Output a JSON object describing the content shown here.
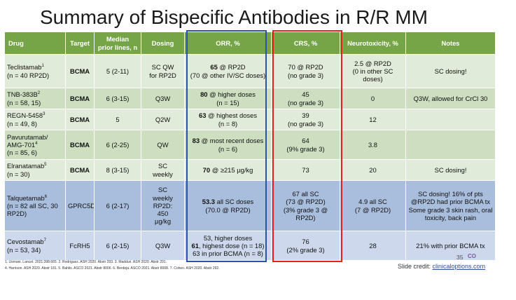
{
  "title": "Summary of Bispecific Antibodies in R/R MM",
  "columns": {
    "drug": "Drug",
    "target": "Target",
    "median_line1": "Median",
    "median_line2": "prior lines, n",
    "dosing": "Dosing",
    "orr": "ORR, %",
    "crs": "CRS, %",
    "neuro": "Neurotoxicity, %",
    "notes": "Notes"
  },
  "rows": [
    {
      "drug_name": "Teclistamab",
      "drug_sup": "1",
      "drug_n": "(n = 40 RP2D)",
      "target": "BCMA",
      "median": "5 (2-11)",
      "dosing_1": "SC QW",
      "dosing_2": "for RP2D",
      "orr_bold": "65",
      "orr_rest": " @ RP2D",
      "orr_2": "(70 @ other IV/SC doses)",
      "crs_1": "70 @ RP2D",
      "crs_2": "(no grade 3)",
      "neuro_1": "2.5 @ RP2D",
      "neuro_2": "(0 in other SC",
      "neuro_3": "doses)",
      "notes": "SC dosing!"
    },
    {
      "drug_name": "TNB-383B",
      "drug_sup": "2",
      "drug_n": "(n = 58, 15)",
      "target": "BCMA",
      "median": "6 (3-15)",
      "dosing": "Q3W",
      "orr_bold": "80",
      "orr_rest": " @ higher doses",
      "orr_2": "(n = 15)",
      "crs_1": "45",
      "crs_2": "(no grade 3)",
      "neuro": "0",
      "notes": "Q3W, allowed for CrCl 30"
    },
    {
      "drug_name": "REGN-5458",
      "drug_sup": "3",
      "drug_n": "(n = 49, 8)",
      "target": "BCMA",
      "median": "5",
      "dosing": "Q2W",
      "orr_bold": "63",
      "orr_rest": " @ highest doses",
      "orr_2": "(n = 8)",
      "crs_1": "39",
      "crs_2": "(no grade 3)",
      "neuro": "12",
      "notes": ""
    },
    {
      "drug_name_1": "Pavurutamab/",
      "drug_name_2": "AMG-701",
      "drug_sup": "4",
      "drug_n": "(n = 85, 6)",
      "target": "BCMA",
      "median": "6 (2-25)",
      "dosing": "QW",
      "orr_bold": "83",
      "orr_rest": " @ most recent doses",
      "orr_2": "(n = 6)",
      "crs_1": "64",
      "crs_2": "(9% grade 3)",
      "neuro": "3.8",
      "notes": ""
    },
    {
      "drug_name": "Elranatamab",
      "drug_sup": "5",
      "drug_n": "(n = 30)",
      "target": "BCMA",
      "median": "8 (3-15)",
      "dosing_1": "SC",
      "dosing_2": "weekly",
      "orr_bold": "70",
      "orr_rest": " @ ≥215 µg/kg",
      "crs": "73",
      "neuro": "20",
      "notes": "SC dosing!"
    },
    {
      "drug_name": "Talquetamab",
      "drug_sup": "6",
      "drug_n_1": "(n = 82 all SC, 30",
      "drug_n_2": "RP2D)",
      "target": "GPRC5D",
      "median": "6 (2-17)",
      "dosing_1": "SC",
      "dosing_2": "weekly",
      "dosing_3": "RP2D:",
      "dosing_4": "450",
      "dosing_5": "µg/kg",
      "orr_bold": "53.3",
      "orr_rest": " all SC doses",
      "orr_2": "(70.0 @ RP2D)",
      "crs_1": "67 all SC",
      "crs_2": "(73 @ RP2D)",
      "crs_3": "(3% grade 3 @",
      "crs_4": "RP2D)",
      "neuro_1": "4.9 all SC",
      "neuro_2": "(7 @ RP2D)",
      "notes_1": "SC dosing! 16% of pts",
      "notes_2": "@RP2D had prior BCMA tx",
      "notes_3": "Some grade 3 skin rash, oral",
      "notes_4": "toxicity, back pain"
    },
    {
      "drug_name": "Cevostamab",
      "drug_sup": "7",
      "drug_n": "(n = 53, 34)",
      "target": "FcRH5",
      "median": "6 (2-15)",
      "dosing": "Q3W",
      "orr_1": "53, higher doses",
      "orr_bold": "61",
      "orr_rest": ", highest dose (n = 18)",
      "orr_3": "63 in prior BCMA (n = 8)",
      "crs_1": "76",
      "crs_2": "(2% grade 3)",
      "neuro": "28",
      "notes": "21% with prior BCMA tx"
    }
  ],
  "references": {
    "line1": "1. Usmani. Lancet. 2021;398:665. 2. Rodriguez. ASH 2020. Abstr 293. 3. Madduri. ASH 2020. Abstr 291.",
    "line2": "4. Harrison. ASH 2020. Abstr 181. 5. Bahlis. ASCO 2021. Abstr 8006. 6. Berdeja. ASCO 2021. Abstr 8008. 7. Cohen. ASH 2020. Abstr 292."
  },
  "page_number": "35",
  "logo_text": "CO",
  "credit": {
    "prefix": "Slide credit: ",
    "link": "clinicaloptions.com"
  },
  "colors": {
    "header_green": "#76a548",
    "row_green_light": "#e1ebd9",
    "row_green_dark": "#cddfc0",
    "row_blue_dark": "#a9bddd",
    "row_blue_light": "#cdd8ec",
    "orr_outline": "#2a53a6",
    "crs_outline": "#e8211f"
  }
}
